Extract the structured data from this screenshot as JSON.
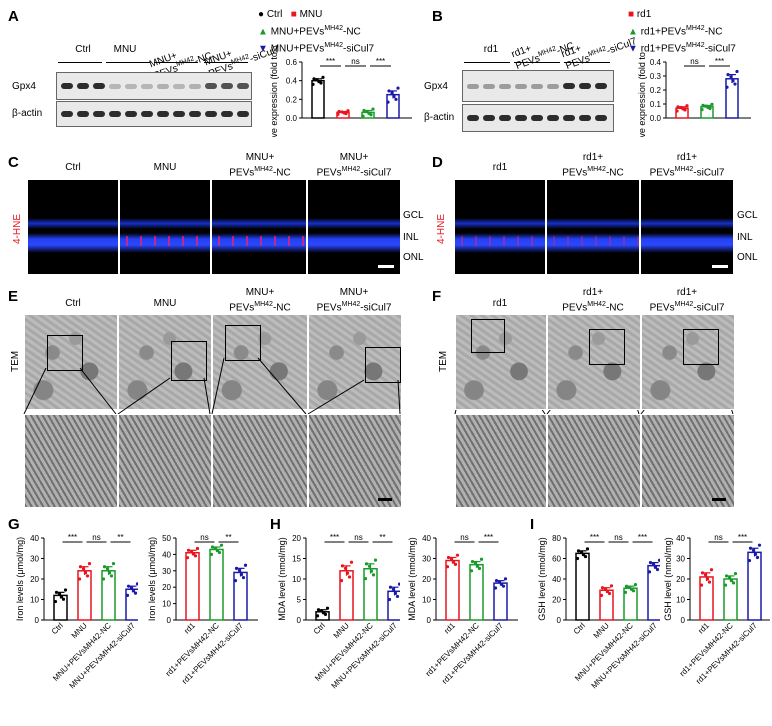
{
  "panels": {
    "A": {
      "label": "A",
      "lanes": [
        "Ctrl",
        "MNU",
        "MNU+",
        "PEVs",
        "MH42",
        "-NC",
        "MNU+",
        "PEVs",
        "MH42",
        "-siCul7"
      ],
      "rows": [
        "Gpx4",
        "β-actin"
      ],
      "legend": [
        "Ctrl",
        "MNU",
        "MNU+PEVs",
        "MH42",
        "-NC",
        "MNU+PEVs",
        "MH42",
        "-siCul7"
      ],
      "ylabel": [
        "Relative expression",
        "(fold to β-actin)"
      ],
      "sig": [
        "***",
        "ns",
        "***"
      ]
    },
    "B": {
      "label": "B",
      "lanes": [
        "rd1",
        "rd1+",
        "PEVs",
        "MH42",
        "-NC",
        "rd1+",
        "PEVs",
        "MH42",
        "-siCul7"
      ],
      "rows": [
        "Gpx4",
        "β-actin"
      ],
      "legend": [
        "rd1",
        "rd1+PEVs",
        "MH42",
        "-NC",
        "rd1+PEVs",
        "MH42",
        "-siCul7"
      ],
      "ylabel": [
        "Relative expression",
        "(fold to β-actin)"
      ],
      "sig": [
        "ns",
        "***"
      ]
    },
    "C": {
      "label": "C",
      "cols": [
        "Ctrl",
        "MNU",
        "MNU+",
        "PEVs",
        "MH42",
        "-NC",
        "MNU+",
        "PEVs",
        "MH42",
        "-siCul7"
      ],
      "stain": "4-HNE",
      "layers": [
        "GCL",
        "INL",
        "ONL"
      ]
    },
    "D": {
      "label": "D",
      "cols": [
        "rd1",
        "rd1+",
        "PEVs",
        "MH42",
        "-NC",
        "rd1+",
        "PEVs",
        "MH42",
        "-siCul7"
      ],
      "stain": "4-HNE",
      "layers": [
        "GCL",
        "INL",
        "ONL"
      ]
    },
    "E": {
      "label": "E",
      "cols": [
        "Ctrl",
        "MNU",
        "MNU+",
        "PEVs",
        "MH42",
        "-NC",
        "MNU+",
        "PEVs",
        "MH42",
        "-siCul7"
      ],
      "rowlabel": "TEM"
    },
    "F": {
      "label": "F",
      "cols": [
        "rd1",
        "rd1+",
        "PEVs",
        "MH42",
        "-NC",
        "rd1+",
        "PEVs",
        "MH42",
        "-siCul7"
      ],
      "rowlabel": "TEM"
    },
    "G": {
      "label": "G",
      "ylabel": "Iron levels (μmol/mg)"
    },
    "H": {
      "label": "H",
      "ylabel": "MDA level (nmol/mg)"
    },
    "I": {
      "label": "I",
      "ylabel": "GSH level (nmol/mg)"
    }
  },
  "colors": {
    "ctrl": "#000000",
    "mnu": "#e8141e",
    "nc": "#1a9a2a",
    "sicul7": "#1a1aa8"
  },
  "chart_data": [
    {
      "id": "A",
      "type": "bar",
      "categories": [
        "Ctrl",
        "MNU",
        "MNU+PEVsMH42-NC",
        "MNU+PEVsMH42-siCul7"
      ],
      "values": [
        0.4,
        0.06,
        0.06,
        0.25
      ],
      "errors": [
        0.02,
        0.01,
        0.02,
        0.04
      ],
      "ylabel": "Relative expression (fold to β-actin)",
      "ylim": [
        0,
        0.6
      ],
      "yticks": [
        "0.0",
        "0.2",
        "0.4",
        "0.6"
      ],
      "sig": [
        {
          "from": 0,
          "to": 1,
          "label": "***"
        },
        {
          "from": 1,
          "to": 2,
          "label": "ns"
        },
        {
          "from": 2,
          "to": 3,
          "label": "***"
        }
      ],
      "colors": [
        "#000000",
        "#e8141e",
        "#1a9a2a",
        "#1a1aa8"
      ],
      "show_xlabels": false
    },
    {
      "id": "B",
      "type": "bar",
      "categories": [
        "rd1",
        "rd1+PEVsMH42-NC",
        "rd1+PEVsMH42-siCul7"
      ],
      "values": [
        0.07,
        0.08,
        0.28
      ],
      "errors": [
        0.01,
        0.01,
        0.03
      ],
      "ylabel": "Relative expression (fold to β-actin)",
      "ylim": [
        0,
        0.4
      ],
      "yticks": [
        "0.0",
        "0.1",
        "0.2",
        "0.3",
        "0.4"
      ],
      "sig": [
        {
          "from": 0,
          "to": 1,
          "label": "ns"
        },
        {
          "from": 1,
          "to": 2,
          "label": "***"
        }
      ],
      "colors": [
        "#e8141e",
        "#1a9a2a",
        "#1a1aa8"
      ],
      "show_xlabels": false
    },
    {
      "id": "G1",
      "type": "bar",
      "categories": [
        "Ctrl",
        "MNU",
        "MNU+PEVsMH42-NC",
        "MNU+PEVsMH42-siCul7"
      ],
      "values": [
        12,
        24,
        24,
        15
      ],
      "errors": [
        1.5,
        2,
        2,
        1.5
      ],
      "ylabel": "Iron levels (μmol/mg)",
      "ylim": [
        0,
        40
      ],
      "yticks": [
        "0",
        "10",
        "20",
        "30",
        "40"
      ],
      "sig": [
        {
          "from": 0,
          "to": 1,
          "label": "***"
        },
        {
          "from": 1,
          "to": 2,
          "label": "ns"
        },
        {
          "from": 2,
          "to": 3,
          "label": "**"
        }
      ],
      "colors": [
        "#000000",
        "#e8141e",
        "#1a9a2a",
        "#1a1aa8"
      ],
      "show_xlabels": true
    },
    {
      "id": "G2",
      "type": "bar",
      "categories": [
        "rd1",
        "rd1+PEVsMH42-NC",
        "rd1+PEVsMH42-siCul7"
      ],
      "values": [
        41,
        43,
        29
      ],
      "errors": [
        1.5,
        1.5,
        2.5
      ],
      "ylabel": "Iron levels (μmol/mg)",
      "ylim": [
        0,
        50
      ],
      "yticks": [
        "0",
        "10",
        "20",
        "30",
        "40",
        "50"
      ],
      "sig": [
        {
          "from": 0,
          "to": 1,
          "label": "ns"
        },
        {
          "from": 1,
          "to": 2,
          "label": "**"
        }
      ],
      "colors": [
        "#e8141e",
        "#1a9a2a",
        "#1a1aa8"
      ],
      "show_xlabels": true
    },
    {
      "id": "H1",
      "type": "bar",
      "categories": [
        "Ctrl",
        "MNU",
        "MNU+PEVsMH42-NC",
        "MNU+PEVsMH42-siCul7"
      ],
      "values": [
        2,
        12,
        12.5,
        7
      ],
      "errors": [
        0.5,
        1.2,
        1.2,
        1
      ],
      "ylabel": "MDA level (nmol/mg)",
      "ylim": [
        0,
        20
      ],
      "yticks": [
        "0",
        "5",
        "10",
        "15",
        "20"
      ],
      "sig": [
        {
          "from": 0,
          "to": 1,
          "label": "***"
        },
        {
          "from": 1,
          "to": 2,
          "label": "ns"
        },
        {
          "from": 2,
          "to": 3,
          "label": "**"
        }
      ],
      "colors": [
        "#000000",
        "#e8141e",
        "#1a9a2a",
        "#1a1aa8"
      ],
      "show_xlabels": true
    },
    {
      "id": "H2",
      "type": "bar",
      "categories": [
        "rd1",
        "rd1+PEVsMH42-NC",
        "rd1+PEVsMH42-siCul7"
      ],
      "values": [
        29,
        27,
        18
      ],
      "errors": [
        1.5,
        1.5,
        1.2
      ],
      "ylabel": "MDA level (nmol/mg)",
      "ylim": [
        0,
        40
      ],
      "yticks": [
        "0",
        "10",
        "20",
        "30",
        "40"
      ],
      "sig": [
        {
          "from": 0,
          "to": 1,
          "label": "ns"
        },
        {
          "from": 1,
          "to": 2,
          "label": "***"
        }
      ],
      "colors": [
        "#e8141e",
        "#1a9a2a",
        "#1a1aa8"
      ],
      "show_xlabels": true
    },
    {
      "id": "I1",
      "type": "bar",
      "categories": [
        "Ctrl",
        "MNU",
        "MNU+PEVsMH42-NC",
        "MNU+PEVsMH42-siCul7"
      ],
      "values": [
        65,
        29,
        31,
        53
      ],
      "errors": [
        2.5,
        2.5,
        2,
        3
      ],
      "ylabel": "GSH level (nmol/mg)",
      "ylim": [
        0,
        80
      ],
      "yticks": [
        "0",
        "20",
        "40",
        "60",
        "80"
      ],
      "sig": [
        {
          "from": 0,
          "to": 1,
          "label": "***"
        },
        {
          "from": 1,
          "to": 2,
          "label": "ns"
        },
        {
          "from": 2,
          "to": 3,
          "label": "***"
        }
      ],
      "colors": [
        "#000000",
        "#e8141e",
        "#1a9a2a",
        "#1a1aa8"
      ],
      "show_xlabels": true
    },
    {
      "id": "I2",
      "type": "bar",
      "categories": [
        "rd1",
        "rd1+PEVsMH42-NC",
        "rd1+PEVsMH42-siCul7"
      ],
      "values": [
        21,
        20,
        33
      ],
      "errors": [
        2,
        1.5,
        2
      ],
      "ylabel": "GSH level (nmol/mg)",
      "ylim": [
        0,
        40
      ],
      "yticks": [
        "0",
        "10",
        "20",
        "30",
        "40"
      ],
      "sig": [
        {
          "from": 0,
          "to": 1,
          "label": "ns"
        },
        {
          "from": 1,
          "to": 2,
          "label": "***"
        }
      ],
      "colors": [
        "#e8141e",
        "#1a9a2a",
        "#1a1aa8"
      ],
      "show_xlabels": true
    }
  ]
}
